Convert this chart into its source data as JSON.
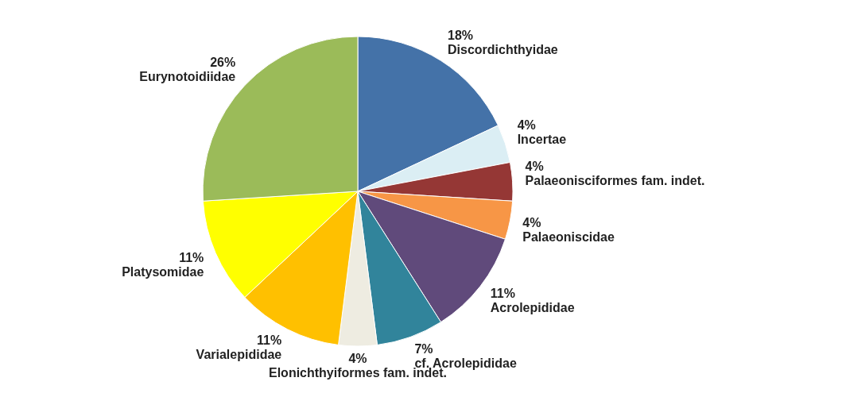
{
  "chart_data": {
    "type": "pie",
    "categories": [
      "Discordichthyidae",
      "Incertae",
      "Palaeonisciformes fam. indet.",
      "Palaeoniscidae",
      "Acrolepididae",
      "cf. Acrolepididae",
      "Elonichthyiformes fam. indet.",
      "Varialepididae",
      "Platysomidae",
      "Eurynotoidiidae"
    ],
    "values": [
      18,
      4,
      4,
      4,
      11,
      7,
      4,
      11,
      11,
      26
    ],
    "value_labels": [
      "18%",
      "4%",
      "4%",
      "4%",
      "11%",
      "7%",
      "4%",
      "11%",
      "11%",
      "26%"
    ],
    "colors": [
      "#4472a8",
      "#dbeef4",
      "#953735",
      "#f79646",
      "#604a7b",
      "#31849b",
      "#eeece1",
      "#ffc000",
      "#ffff00",
      "#9bbb59"
    ]
  }
}
